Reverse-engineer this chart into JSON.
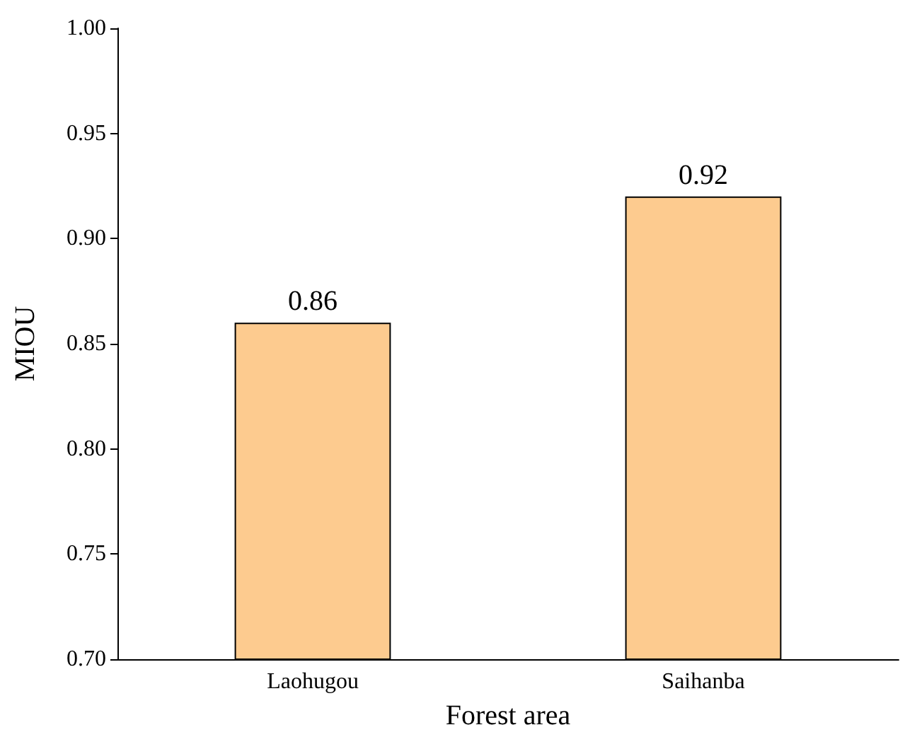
{
  "chart_data": {
    "type": "bar",
    "xlabel": "Forest area",
    "ylabel": "MIOU",
    "categories": [
      "Laohugou",
      "Saihanba"
    ],
    "values": [
      0.86,
      0.92
    ],
    "color": "#fdcb8f",
    "ylim": [
      0.7,
      1.0
    ],
    "yticks": [
      "0.70",
      "0.75",
      "0.80",
      "0.85",
      "0.90",
      "0.95",
      "1.00"
    ],
    "data_labels": true
  }
}
